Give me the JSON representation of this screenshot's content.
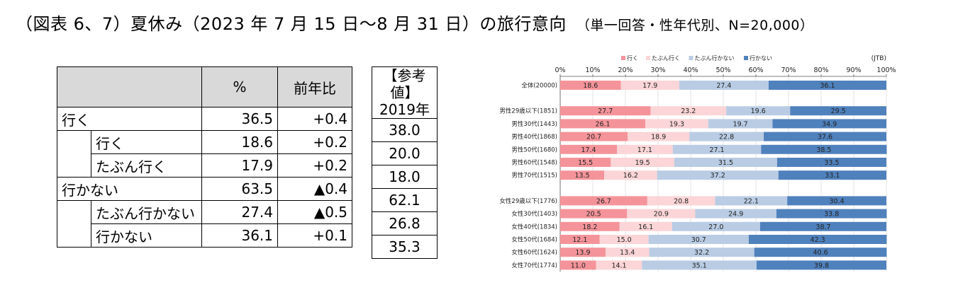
{
  "title": {
    "main": "（図表 6、7）夏休み（2023 年 7 月 15 日～8 月 31 日）の旅行意向",
    "sub": "（単一回答・性年代別、N=20,000）"
  },
  "table": {
    "headers": {
      "blank": "",
      "percent": "%",
      "yoy": "前年比"
    },
    "rows": [
      {
        "label": "行く",
        "percent": "36.5",
        "yoy": "+0.4"
      },
      {
        "label": "行く",
        "percent": "18.6",
        "yoy": "+0.2"
      },
      {
        "label": "たぶん行く",
        "percent": "17.9",
        "yoy": "+0.2"
      },
      {
        "label": "行かない",
        "percent": "63.5",
        "yoy": "▲0.4"
      },
      {
        "label": "たぶん行かない",
        "percent": "27.4",
        "yoy": "▲0.5"
      },
      {
        "label": "行かない",
        "percent": "36.1",
        "yoy": "+0.1"
      }
    ]
  },
  "reference": {
    "header_line1": "【参考値】",
    "header_line2": "2019年",
    "values": [
      "38.0",
      "20.0",
      "18.0",
      "62.1",
      "26.8",
      "35.3"
    ]
  },
  "chart_data": {
    "type": "bar",
    "orientation": "horizontal",
    "stacked": true,
    "source": "(JTB)",
    "xlim": [
      0,
      100
    ],
    "xticks": [
      "0%",
      "10%",
      "20%",
      "30%",
      "40%",
      "50%",
      "60%",
      "70%",
      "80%",
      "90%",
      "100%"
    ],
    "series": [
      {
        "name": "行く",
        "color": "#f4949a"
      },
      {
        "name": "たぶん行く",
        "color": "#fbd5d7"
      },
      {
        "name": "たぶん行かない",
        "color": "#b9cce4"
      },
      {
        "name": "行かない",
        "color": "#4f81bd"
      }
    ],
    "categories": [
      {
        "label": "全体(20000)",
        "values": [
          18.6,
          17.9,
          27.4,
          36.1
        ]
      },
      {
        "label": "男性29歳以下(1851)",
        "values": [
          27.7,
          23.2,
          19.6,
          29.5
        ]
      },
      {
        "label": "男性30代(1443)",
        "values": [
          26.1,
          19.3,
          19.7,
          34.9
        ]
      },
      {
        "label": "男性40代(1868)",
        "values": [
          20.7,
          18.9,
          22.8,
          37.6
        ]
      },
      {
        "label": "男性50代(1680)",
        "values": [
          17.4,
          17.1,
          27.1,
          38.5
        ]
      },
      {
        "label": "男性60代(1548)",
        "values": [
          15.5,
          19.5,
          31.5,
          33.5
        ]
      },
      {
        "label": "男性70代(1515)",
        "values": [
          13.5,
          16.2,
          37.2,
          33.1
        ]
      },
      {
        "label": "女性29歳以下(1776)",
        "values": [
          26.7,
          20.8,
          22.1,
          30.4
        ]
      },
      {
        "label": "女性30代(1403)",
        "values": [
          20.5,
          20.9,
          24.9,
          33.8
        ]
      },
      {
        "label": "女性40代(1834)",
        "values": [
          18.2,
          16.1,
          27.0,
          38.7
        ]
      },
      {
        "label": "女性50代(1684)",
        "values": [
          12.1,
          15.0,
          30.7,
          42.3
        ]
      },
      {
        "label": "女性60代(1624)",
        "values": [
          13.9,
          13.4,
          32.2,
          40.6
        ]
      },
      {
        "label": "女性70代(1774)",
        "values": [
          11.0,
          14.1,
          35.1,
          39.8
        ]
      }
    ],
    "groups": [
      [
        0
      ],
      [
        1,
        2,
        3,
        4,
        5,
        6
      ],
      [
        7,
        8,
        9,
        10,
        11,
        12
      ]
    ]
  }
}
